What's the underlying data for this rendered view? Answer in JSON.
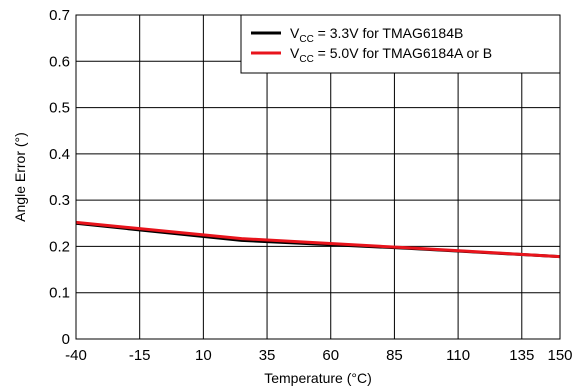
{
  "chart_data": {
    "type": "line",
    "xlabel": "Temperature (°C)",
    "ylabel": "Angle Error (°)",
    "xlim": [
      -40,
      150
    ],
    "ylim": [
      0,
      0.7
    ],
    "x_ticks": [
      -40,
      -15,
      10,
      35,
      60,
      85,
      110,
      135,
      150
    ],
    "y_ticks": [
      0,
      0.1,
      0.2,
      0.3,
      0.4,
      0.5,
      0.6,
      0.7
    ],
    "x_tick_labels": [
      "-40",
      "-15",
      "10",
      "35",
      "60",
      "85",
      "110",
      "135",
      "150"
    ],
    "y_tick_labels": [
      "0",
      "0.1",
      "0.2",
      "0.3",
      "0.4",
      "0.5",
      "0.6",
      "0.7"
    ],
    "grid": true,
    "legend_position": "top-right",
    "series": [
      {
        "name": "VCC = 3.3V for TMAG6184B",
        "legend_prefix": "V",
        "legend_subscript": "CC",
        "legend_suffix": " = 3.3V for TMAG6184B",
        "color": "#000000",
        "x": [
          -40,
          25,
          90,
          150
        ],
        "y": [
          0.25,
          0.213,
          0.196,
          0.178
        ]
      },
      {
        "name": "VCC = 5.0V for TMAG6184A or B",
        "legend_prefix": "V",
        "legend_subscript": "CC",
        "legend_suffix": " = 5.0V for TMAG6184A or B",
        "color": "#e8141c",
        "x": [
          -40,
          25,
          90,
          150
        ],
        "y": [
          0.252,
          0.217,
          0.197,
          0.178
        ]
      }
    ]
  }
}
